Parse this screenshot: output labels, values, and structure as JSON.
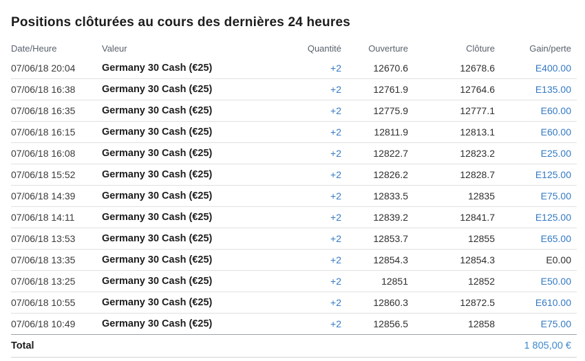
{
  "page": {
    "title": "Positions clôturées au cours des dernières 24 heures"
  },
  "colors": {
    "accent_blue": "#3379c2",
    "total_blue": "#4189cd",
    "neutral_text": "#2e2e2e",
    "header_gray": "#59616c",
    "separator": "#e0e0e0"
  },
  "table": {
    "columns": [
      "Date/Heure",
      "Valeur",
      "Quantité",
      "Ouverture",
      "Clôture",
      "Gain/perte"
    ],
    "rows": [
      {
        "datetime": "07/06/18 20:04",
        "valeur": "Germany 30 Cash (€25)",
        "quantite": "+2",
        "ouverture": "12670.6",
        "cloture": "12678.6",
        "gain": "E400.00",
        "gain_is_zero": false
      },
      {
        "datetime": "07/06/18 16:38",
        "valeur": "Germany 30 Cash (€25)",
        "quantite": "+2",
        "ouverture": "12761.9",
        "cloture": "12764.6",
        "gain": "E135.00",
        "gain_is_zero": false
      },
      {
        "datetime": "07/06/18 16:35",
        "valeur": "Germany 30 Cash (€25)",
        "quantite": "+2",
        "ouverture": "12775.9",
        "cloture": "12777.1",
        "gain": "E60.00",
        "gain_is_zero": false
      },
      {
        "datetime": "07/06/18 16:15",
        "valeur": "Germany 30 Cash (€25)",
        "quantite": "+2",
        "ouverture": "12811.9",
        "cloture": "12813.1",
        "gain": "E60.00",
        "gain_is_zero": false
      },
      {
        "datetime": "07/06/18 16:08",
        "valeur": "Germany 30 Cash (€25)",
        "quantite": "+2",
        "ouverture": "12822.7",
        "cloture": "12823.2",
        "gain": "E25.00",
        "gain_is_zero": false
      },
      {
        "datetime": "07/06/18 15:52",
        "valeur": "Germany 30 Cash (€25)",
        "quantite": "+2",
        "ouverture": "12826.2",
        "cloture": "12828.7",
        "gain": "E125.00",
        "gain_is_zero": false
      },
      {
        "datetime": "07/06/18 14:39",
        "valeur": "Germany 30 Cash (€25)",
        "quantite": "+2",
        "ouverture": "12833.5",
        "cloture": "12835",
        "gain": "E75.00",
        "gain_is_zero": false
      },
      {
        "datetime": "07/06/18 14:11",
        "valeur": "Germany 30 Cash (€25)",
        "quantite": "+2",
        "ouverture": "12839.2",
        "cloture": "12841.7",
        "gain": "E125.00",
        "gain_is_zero": false
      },
      {
        "datetime": "07/06/18 13:53",
        "valeur": "Germany 30 Cash (€25)",
        "quantite": "+2",
        "ouverture": "12853.7",
        "cloture": "12855",
        "gain": "E65.00",
        "gain_is_zero": false
      },
      {
        "datetime": "07/06/18 13:35",
        "valeur": "Germany 30 Cash (€25)",
        "quantite": "+2",
        "ouverture": "12854.3",
        "cloture": "12854.3",
        "gain": "E0.00",
        "gain_is_zero": true
      },
      {
        "datetime": "07/06/18 13:25",
        "valeur": "Germany 30 Cash (€25)",
        "quantite": "+2",
        "ouverture": "12851",
        "cloture": "12852",
        "gain": "E50.00",
        "gain_is_zero": false
      },
      {
        "datetime": "07/06/18 10:55",
        "valeur": "Germany 30 Cash (€25)",
        "quantite": "+2",
        "ouverture": "12860.3",
        "cloture": "12872.5",
        "gain": "E610.00",
        "gain_is_zero": false
      },
      {
        "datetime": "07/06/18 10:49",
        "valeur": "Germany 30 Cash (€25)",
        "quantite": "+2",
        "ouverture": "12856.5",
        "cloture": "12858",
        "gain": "E75.00",
        "gain_is_zero": false
      }
    ],
    "total_label": "Total",
    "total_value": "1 805,00 €"
  }
}
